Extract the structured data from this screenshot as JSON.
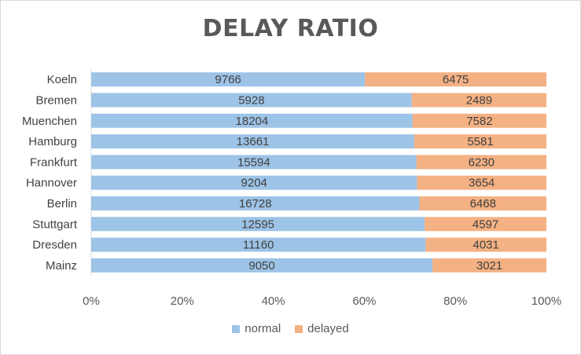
{
  "chart_data": {
    "type": "bar",
    "orientation": "horizontal",
    "stacking": "percent",
    "title": "DELAY RATIO",
    "categories": [
      "Koeln",
      "Bremen",
      "Muenchen",
      "Hamburg",
      "Frankfurt",
      "Hannover",
      "Berlin",
      "Stuttgart",
      "Dresden",
      "Mainz"
    ],
    "series": [
      {
        "name": "normal",
        "color": "#9dc3e6",
        "values": [
          9766,
          5928,
          18204,
          13661,
          15594,
          9204,
          16728,
          12595,
          11160,
          9050
        ]
      },
      {
        "name": "delayed",
        "color": "#f4b183",
        "values": [
          6475,
          2489,
          7582,
          5581,
          6230,
          3654,
          6468,
          4597,
          4031,
          3021
        ]
      }
    ],
    "xticks": [
      "0%",
      "20%",
      "40%",
      "60%",
      "80%",
      "100%"
    ],
    "xlim": [
      0,
      1
    ],
    "grid": false,
    "legend_position": "bottom"
  }
}
